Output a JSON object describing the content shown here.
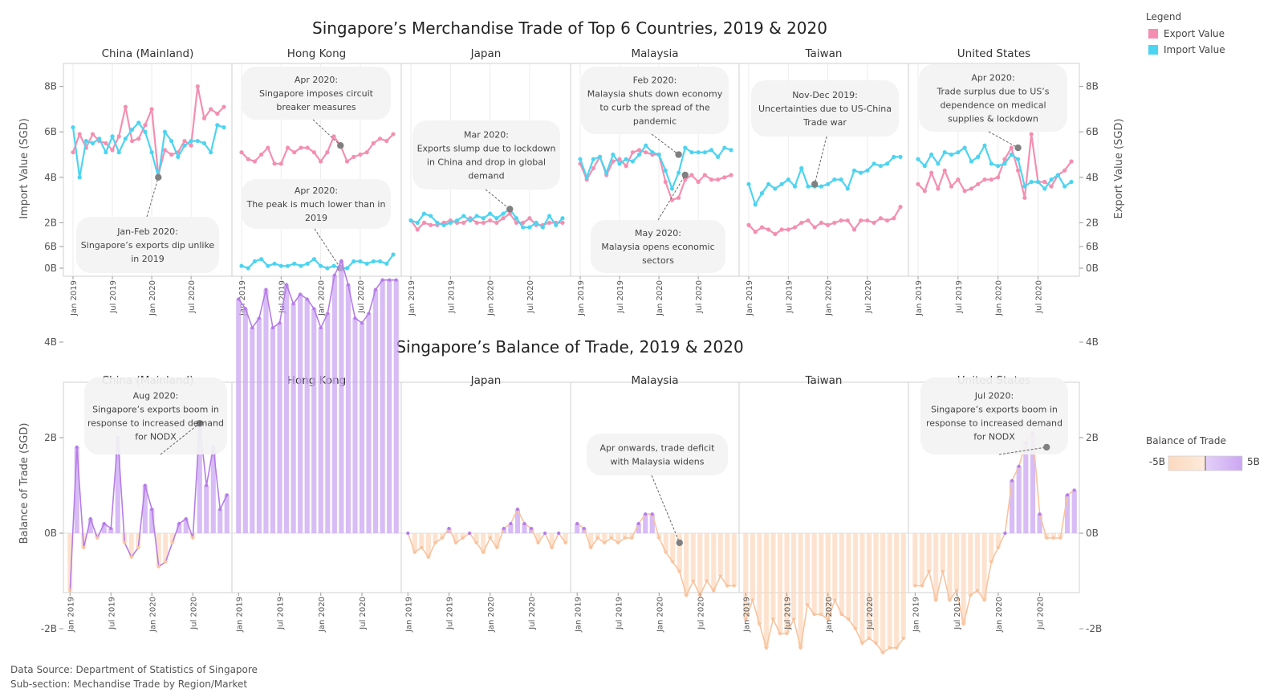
{
  "colors": {
    "export": "#f48fb1",
    "import": "#4dd4f0",
    "positive": "#cba6f2",
    "positive_line": "#b57ce8",
    "negative": "#fcd9bf",
    "negative_line": "#f8c39e",
    "marker": "#808080"
  },
  "months": [
    "Jan 2019",
    "Feb 2019",
    "Mar 2019",
    "Apr 2019",
    "May 2019",
    "Jun 2019",
    "Jul 2019",
    "Aug 2019",
    "Sep 2019",
    "Oct 2019",
    "Nov 2019",
    "Dec 2019",
    "Jan 2020",
    "Feb 2020",
    "Mar 2020",
    "Apr 2020",
    "May 2020",
    "Jun 2020",
    "Jul 2020",
    "Aug 2020",
    "Sep 2020",
    "Oct 2020",
    "Nov 2020",
    "Dec 2020"
  ],
  "xticks": [
    "Jan 2019",
    "Jul 2019",
    "Jan 2020",
    "Jul 2020"
  ],
  "countries": [
    "China (Mainland)",
    "Hong Kong",
    "Japan",
    "Malaysia",
    "Taiwan",
    "United States"
  ],
  "legend": {
    "title": "Legend",
    "items": [
      "Export Value",
      "Import Value"
    ]
  },
  "bot_legend": {
    "title": "Balance of Trade",
    "min": "-5B",
    "max": "5B"
  },
  "footer": {
    "line1": "Data Source: Department of Statistics of Singapore",
    "line2": "Sub-section: Mechandise Trade by Region/Market"
  },
  "chart_data": [
    {
      "type": "line",
      "title": "Singapore’s Merchandise Trade of Top 6 Countries, 2019 & 2020",
      "ylabel_left": "Import Value (SGD)",
      "ylabel_right": "Export Value (SGD)",
      "yticks": [
        "0B",
        "2B",
        "4B",
        "6B",
        "8B"
      ],
      "ylim": [
        0,
        8.8
      ],
      "x": "months",
      "panels": [
        {
          "country": "China (Mainland)",
          "series": [
            {
              "name": "Export Value",
              "values": [
                5.1,
                5.9,
                5.3,
                5.9,
                5.6,
                5.5,
                5.2,
                5.8,
                7.1,
                5.6,
                5.7,
                6.3,
                7.0,
                4.1,
                5.2,
                5.0,
                5.1,
                5.6,
                5.4,
                8.0,
                6.6,
                7.0,
                6.8,
                7.1
              ]
            },
            {
              "name": "Import Value",
              "values": [
                6.2,
                4.0,
                5.6,
                5.5,
                5.7,
                5.1,
                5.8,
                5.1,
                5.7,
                6.1,
                6.4,
                6.0,
                5.1,
                4.0,
                6.0,
                5.6,
                4.9,
                5.4,
                5.6,
                5.6,
                5.5,
                5.1,
                6.3,
                6.2
              ]
            }
          ],
          "annotations": [
            {
              "text": [
                "Jan-Feb 2020:",
                "Singapore’s exports dip  unlike",
                "in 2019"
              ]
            }
          ]
        },
        {
          "country": "Hong Kong",
          "series": [
            {
              "name": "Export Value",
              "values": [
                5.1,
                4.8,
                4.7,
                5.0,
                5.3,
                4.6,
                4.6,
                5.3,
                5.1,
                5.3,
                5.3,
                5.1,
                4.7,
                5.1,
                5.8,
                5.4,
                4.7,
                4.9,
                5.0,
                5.1,
                5.5,
                5.7,
                5.6,
                5.9
              ]
            },
            {
              "name": "Import Value",
              "values": [
                0.1,
                0.0,
                0.3,
                0.4,
                0.1,
                0.2,
                0.1,
                0.1,
                0.2,
                0.1,
                0.2,
                0.4,
                0.1,
                0.0,
                0.1,
                0.0,
                0.0,
                0.3,
                0.3,
                0.2,
                0.3,
                0.3,
                0.2,
                0.6
              ]
            }
          ],
          "annotations": [
            {
              "text": [
                "Apr 2020:",
                "Singapore imposes circuit",
                "breaker measures"
              ]
            },
            {
              "text": [
                "Apr 2020:",
                "The peak is much lower than in",
                "2019"
              ]
            }
          ]
        },
        {
          "country": "Japan",
          "series": [
            {
              "name": "Export Value",
              "values": [
                2.1,
                1.7,
                2.0,
                1.9,
                1.9,
                2.0,
                2.1,
                2.0,
                2.0,
                2.2,
                2.0,
                2.0,
                2.1,
                2.0,
                2.2,
                2.4,
                2.0,
                2.0,
                2.2,
                1.9,
                1.9,
                2.0,
                2.0,
                2.0
              ]
            },
            {
              "name": "Import Value",
              "values": [
                2.1,
                2.0,
                2.4,
                2.3,
                2.0,
                1.9,
                2.0,
                2.1,
                2.3,
                2.1,
                2.3,
                2.2,
                2.4,
                2.2,
                2.4,
                2.6,
                2.2,
                1.8,
                1.8,
                2.0,
                1.8,
                2.3,
                1.9,
                2.2
              ]
            }
          ],
          "annotations": [
            {
              "text": [
                "Mar 2020:",
                "Exports slump due to lockdown",
                "in China and drop in global",
                "demand"
              ]
            }
          ]
        },
        {
          "country": "Malaysia",
          "series": [
            {
              "name": "Export Value",
              "values": [
                4.6,
                3.9,
                4.4,
                4.9,
                4.1,
                4.7,
                4.8,
                4.5,
                5.1,
                5.2,
                5.1,
                5.0,
                5.0,
                3.8,
                3.0,
                3.1,
                3.9,
                4.1,
                3.8,
                4.1,
                3.9,
                3.9,
                4.0,
                4.1
              ]
            },
            {
              "name": "Import Value",
              "values": [
                4.8,
                4.0,
                4.8,
                4.9,
                4.2,
                5.0,
                4.6,
                4.8,
                4.7,
                5.0,
                5.4,
                5.1,
                5.0,
                4.3,
                3.5,
                4.2,
                5.3,
                5.1,
                5.1,
                5.1,
                5.2,
                4.9,
                5.3,
                5.2
              ]
            }
          ],
          "annotations": [
            {
              "text": [
                "Feb 2020:",
                "Malaysia shuts down economy",
                "to curb the spread of the",
                "pandemic"
              ]
            },
            {
              "text": [
                "May 2020:",
                "Malaysia opens economic",
                "sectors"
              ]
            }
          ]
        },
        {
          "country": "Taiwan",
          "series": [
            {
              "name": "Export Value",
              "values": [
                1.9,
                1.6,
                1.8,
                1.7,
                1.5,
                1.7,
                1.7,
                1.8,
                2.0,
                2.1,
                1.8,
                2.0,
                1.9,
                2.0,
                2.1,
                2.1,
                1.7,
                2.1,
                2.1,
                2.0,
                2.2,
                2.1,
                2.2,
                2.7
              ]
            },
            {
              "name": "Import Value",
              "values": [
                3.7,
                2.8,
                3.3,
                3.7,
                3.5,
                3.7,
                3.9,
                3.6,
                4.4,
                3.6,
                3.6,
                3.6,
                3.7,
                3.9,
                3.9,
                3.5,
                4.3,
                4.2,
                4.3,
                4.6,
                4.5,
                4.6,
                4.9,
                4.9
              ]
            }
          ],
          "annotations": [
            {
              "text": [
                "Nov-Dec 2019:",
                "Uncertainties due to US-China",
                "Trade war"
              ]
            }
          ]
        },
        {
          "country": "United States",
          "series": [
            {
              "name": "Export Value",
              "values": [
                3.7,
                3.4,
                4.2,
                3.5,
                4.3,
                3.6,
                3.9,
                3.4,
                3.5,
                3.7,
                3.9,
                3.9,
                4.0,
                4.8,
                5.3,
                4.3,
                3.1,
                5.9,
                3.8,
                3.8,
                3.6,
                4.1,
                4.3,
                4.7
              ]
            },
            {
              "name": "Import Value",
              "values": [
                4.8,
                4.5,
                5.0,
                4.6,
                5.1,
                5.0,
                5.1,
                5.3,
                4.7,
                4.9,
                5.4,
                4.6,
                4.5,
                4.6,
                5.0,
                4.8,
                3.6,
                3.8,
                3.8,
                3.5,
                3.9,
                4.1,
                3.6,
                3.8
              ]
            }
          ],
          "annotations": [
            {
              "text": [
                "Apr 2020:",
                "Trade surplus due to US’s",
                "dependence  on  medical",
                "supplies & lockdown"
              ]
            }
          ]
        }
      ]
    },
    {
      "type": "bar",
      "title": "Singapore’s Balance of Trade, 2019 & 2020",
      "ylabel": "Balance of Trade (SGD)",
      "yticks": [
        "-2B",
        "0B",
        "2B",
        "4B",
        "6B"
      ],
      "ylim": [
        -2.9,
        6.3
      ],
      "x": "months",
      "panels": [
        {
          "country": "China (Mainland)",
          "values": [
            -1.2,
            1.8,
            -0.3,
            0.3,
            -0.1,
            0.2,
            0.1,
            2.0,
            -0.2,
            -0.5,
            -0.3,
            1.0,
            0.5,
            -0.7,
            -0.6,
            -0.2,
            0.2,
            0.3,
            -0.1,
            2.3,
            1.0,
            1.8,
            0.5,
            0.8
          ],
          "annotations": [
            {
              "text": [
                "Aug 2020:",
                "Singapore’s exports boom in",
                "response to increased demand",
                "for NODX"
              ]
            }
          ]
        },
        {
          "country": "Hong Kong",
          "values": [
            4.9,
            4.7,
            4.3,
            4.5,
            5.1,
            4.3,
            4.4,
            5.2,
            4.8,
            5.0,
            4.9,
            4.7,
            4.3,
            4.6,
            5.4,
            5.7,
            5.2,
            4.5,
            4.4,
            4.6,
            5.1,
            5.3,
            5.3,
            5.3
          ],
          "annotations": []
        },
        {
          "country": "Japan",
          "values": [
            0.0,
            -0.4,
            -0.3,
            -0.5,
            -0.2,
            -0.1,
            0.1,
            -0.2,
            -0.1,
            0.0,
            -0.2,
            -0.4,
            -0.1,
            -0.3,
            0.1,
            0.2,
            0.5,
            0.2,
            0.1,
            -0.2,
            0.0,
            -0.3,
            0.0,
            -0.2
          ],
          "annotations": []
        },
        {
          "country": "Malaysia",
          "values": [
            0.2,
            0.1,
            -0.3,
            -0.1,
            -0.2,
            -0.1,
            -0.2,
            -0.1,
            -0.1,
            0.2,
            0.4,
            0.4,
            -0.1,
            -0.4,
            -0.6,
            -0.8,
            -1.3,
            -1.0,
            -1.3,
            -1.0,
            -1.2,
            -0.9,
            -1.1,
            -1.1
          ],
          "annotations": [
            {
              "text": [
                "Apr  onwards, trade deficit",
                "with Malaysia widens"
              ]
            }
          ]
        },
        {
          "country": "Taiwan",
          "values": [
            -1.8,
            -1.4,
            -1.9,
            -2.4,
            -1.8,
            -2.1,
            -2.1,
            -1.8,
            -2.4,
            -1.5,
            -1.7,
            -1.7,
            -1.8,
            -1.4,
            -1.7,
            -1.8,
            -2.0,
            -2.3,
            -2.2,
            -2.3,
            -2.5,
            -2.4,
            -2.4,
            -2.2
          ],
          "annotations": []
        },
        {
          "country": "United States",
          "values": [
            -1.1,
            -1.1,
            -0.8,
            -1.4,
            -0.8,
            -1.4,
            -1.2,
            -1.9,
            -1.3,
            -1.2,
            -1.4,
            -0.6,
            -0.3,
            0.0,
            1.1,
            1.4,
            1.9,
            2.1,
            0.4,
            -0.1,
            -0.1,
            -0.1,
            0.8,
            0.9
          ],
          "annotations": [
            {
              "text": [
                "Jul 2020:",
                "Singapore’s exports boom in",
                "response to increased demand",
                "for NODX"
              ]
            }
          ]
        }
      ]
    }
  ]
}
